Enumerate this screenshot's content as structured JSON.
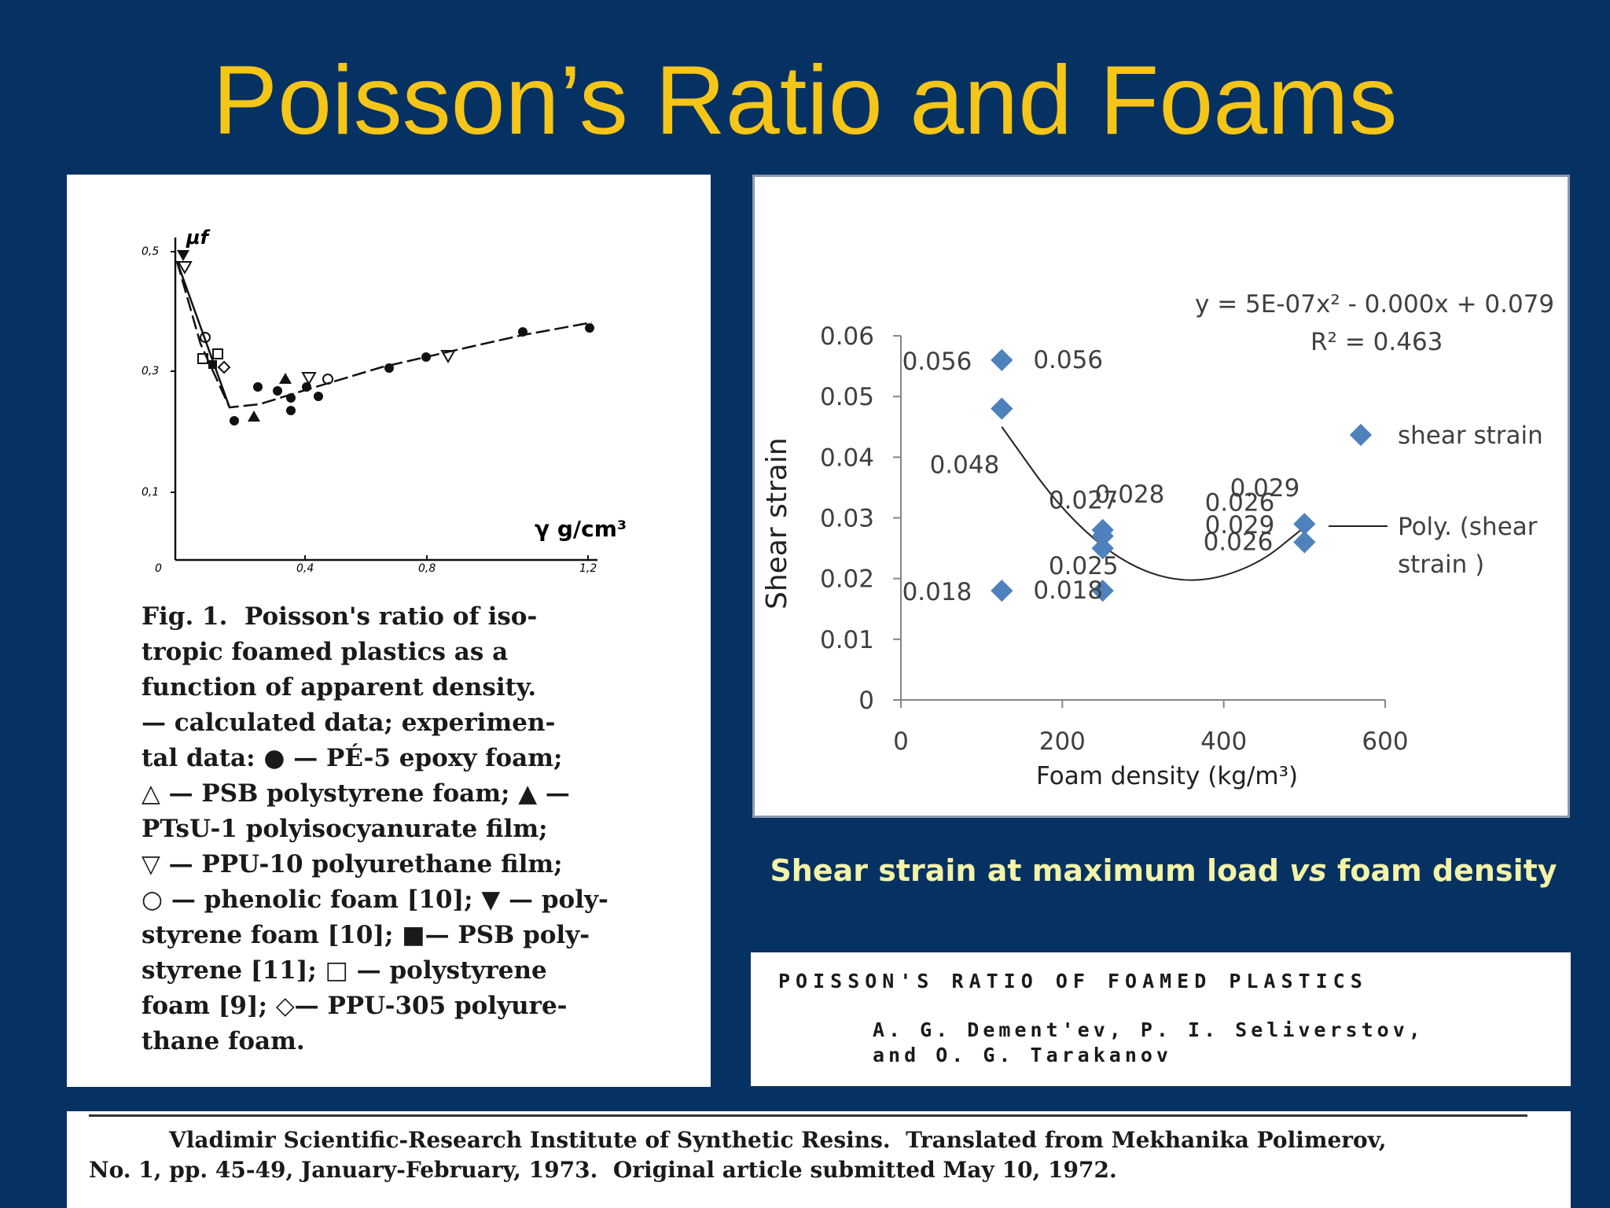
{
  "slide": {
    "title": "Poisson’s Ratio and Foams"
  },
  "left_figure": {
    "y_symbol": "μf",
    "x_label": "γ g/cm³",
    "y_ticks": [
      "0,5",
      "0,3",
      "0,1"
    ],
    "x_ticks": [
      "0",
      "0,4",
      "0,8",
      "1,2"
    ],
    "caption_lines": [
      "Fig. 1.  Poisson's ratio of iso-",
      "tropic foamed plastics as a",
      "function of apparent density.",
      "— calculated data; experimen-",
      "tal data: ● — PÉ-5 epoxy foam;",
      "△ — PSB polystyrene foam; ▲ —",
      "PTsU-1 polyisocyanurate film;",
      "▽ — PPU-10 polyurethane film;",
      "○ — phenolic foam [10]; ▼ — poly-",
      "styrene foam [10]; ■— PSB poly-",
      "styrene [11]; □ — polystyrene",
      "foam [9]; ◇— PPU-305 polyure-",
      "thane foam."
    ]
  },
  "chart_data": {
    "type": "scatter",
    "xlabel": "Foam density (kg/m³)",
    "ylabel": "Shear strain",
    "xlim": [
      0,
      600
    ],
    "ylim": [
      0,
      0.06
    ],
    "x_ticks": [
      "0",
      "200",
      "400",
      "600"
    ],
    "y_ticks": [
      "0",
      "0.01",
      "0.02",
      "0.03",
      "0.04",
      "0.05",
      "0.06"
    ],
    "grid": false,
    "legend_position": "right",
    "series": [
      {
        "name": "shear strain",
        "color": "#4f81bd",
        "x": [
          125,
          125,
          125,
          250,
          250,
          250,
          250,
          500,
          500
        ],
        "y": [
          0.056,
          0.048,
          0.018,
          0.028,
          0.027,
          0.025,
          0.018,
          0.029,
          0.026
        ]
      }
    ],
    "data_labels": [
      {
        "text": "0.056",
        "anchor_x": 125,
        "anchor_y": 0.056,
        "side": "left"
      },
      {
        "text": "0.056",
        "anchor_x": 125,
        "anchor_y": 0.056,
        "side": "right"
      },
      {
        "text": "0.048",
        "anchor_x": 125,
        "anchor_y": 0.048,
        "side": "below"
      },
      {
        "text": "0.018",
        "anchor_x": 125,
        "anchor_y": 0.018,
        "side": "left"
      },
      {
        "text": "0.018",
        "anchor_x": 125,
        "anchor_y": 0.018,
        "side": "right"
      },
      {
        "text": "0.028",
        "anchor_x": 250,
        "anchor_y": 0.028,
        "side": "above-right"
      },
      {
        "text": "0.027",
        "anchor_x": 250,
        "anchor_y": 0.027,
        "side": "above-left"
      },
      {
        "text": "0.025",
        "anchor_x": 250,
        "anchor_y": 0.025,
        "side": "below-left"
      },
      {
        "text": "0.029",
        "anchor_x": 500,
        "anchor_y": 0.029,
        "side": "above"
      },
      {
        "text": "0.029",
        "anchor_x": 500,
        "anchor_y": 0.029,
        "side": "left"
      },
      {
        "text": "0.026",
        "anchor_x": 500,
        "anchor_y": 0.026,
        "side": "left"
      },
      {
        "text": "0.026",
        "anchor_x": 500,
        "anchor_y": 0.026,
        "side": "left-lower"
      }
    ],
    "trendline": {
      "name": "Poly. (shear strain )",
      "type": "polynomial-2",
      "equation": "y = 5E-07x² - 0.000x + 0.079",
      "r_squared": "R² = 0.463",
      "from_x": 125,
      "to_x": 500,
      "shape_points": [
        [
          125,
          0.045
        ],
        [
          200,
          0.031
        ],
        [
          280,
          0.022
        ],
        [
          360,
          0.019
        ],
        [
          440,
          0.022
        ],
        [
          500,
          0.0285
        ]
      ]
    },
    "legend_entries": [
      "shear strain",
      "Poly. (shear",
      "strain )"
    ]
  },
  "caption": {
    "part1": "Shear strain at maximum load ",
    "part2": "vs",
    "part3": "  foam density"
  },
  "reference": {
    "title": "POISSON'S RATIO OF FOAMED PLASTICS",
    "authors_line1": "A. G. Dement'ev, P. I. Seliverstov,",
    "authors_line2": "and O. G. Tarakanov"
  },
  "footnote": {
    "line1": "Vladimir Scientific-Research Institute of Synthetic Resins.  Translated from Mekhanika Polimerov,",
    "line2": "No. 1, pp. 45-49, January-February, 1973.  Original article submitted May 10, 1972."
  }
}
